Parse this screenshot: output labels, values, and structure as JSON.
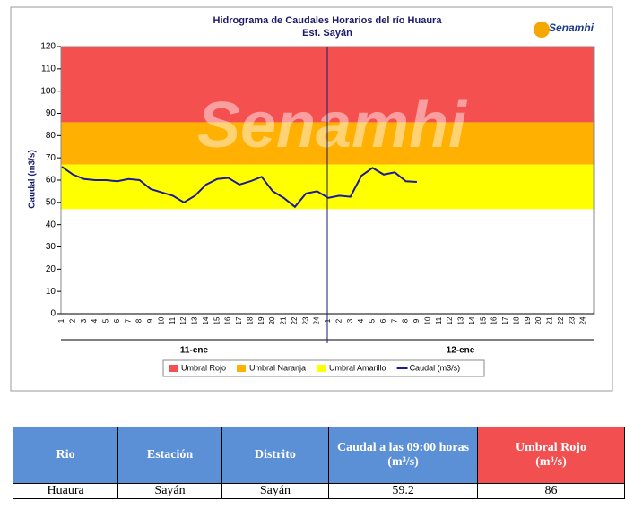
{
  "chart_data": {
    "type": "line",
    "title": "Hidrograma de Caudales Horarios del río Huaura",
    "subtitle": "Est. Sayán",
    "logo": "Senamhi",
    "watermark": "Senamhi",
    "y_label": "Caudal (m3/s)",
    "categories": [
      "1",
      "2",
      "3",
      "4",
      "5",
      "6",
      "7",
      "8",
      "9",
      "10",
      "11",
      "12",
      "13",
      "14",
      "15",
      "16",
      "17",
      "18",
      "19",
      "20",
      "21",
      "22",
      "23",
      "24",
      "1",
      "2",
      "3",
      "4",
      "5",
      "6",
      "7",
      "8",
      "9",
      "10",
      "11",
      "12",
      "13",
      "14",
      "15",
      "16",
      "17",
      "18",
      "19",
      "20",
      "21",
      "22",
      "23",
      "24"
    ],
    "groups": [
      "11-ene",
      "12-ene"
    ],
    "ylim": [
      0,
      120
    ],
    "yticks": [
      0,
      10,
      20,
      30,
      40,
      50,
      60,
      70,
      80,
      90,
      100,
      110,
      120
    ],
    "thresholds": [
      {
        "name": "Umbral Rojo",
        "color": "#f55050",
        "range": [
          86,
          120
        ]
      },
      {
        "name": "Umbral Naranja",
        "color": "#ffb000",
        "range": [
          67,
          86
        ]
      },
      {
        "name": "Umbral Amarillo",
        "color": "#ffff00",
        "range": [
          47,
          67
        ]
      }
    ],
    "series": [
      {
        "name": "Caudal (m3/s)",
        "color": "#1a1a9c",
        "values": [
          66,
          62.5,
          60.5,
          60,
          60,
          59.5,
          60.5,
          60,
          56,
          54.5,
          53,
          50,
          53,
          58,
          60.5,
          61,
          58,
          59.5,
          61.5,
          55,
          52,
          48,
          54,
          55,
          52,
          53,
          52.5,
          62,
          65.5,
          62.5,
          63.5,
          59.5,
          59.2,
          null,
          null,
          null,
          null,
          null,
          null,
          null,
          null,
          null,
          null,
          null,
          null,
          null,
          null,
          null
        ]
      }
    ]
  },
  "table": {
    "header": [
      "Rio",
      "Estación",
      "Distrito",
      "Caudal a las 09:00 horas",
      "(m³/s)",
      "Umbral Rojo",
      "(m³/s)"
    ],
    "rows": [
      [
        "Huaura",
        "Sayán",
        "Sayán",
        "59.2",
        "86"
      ]
    ]
  }
}
